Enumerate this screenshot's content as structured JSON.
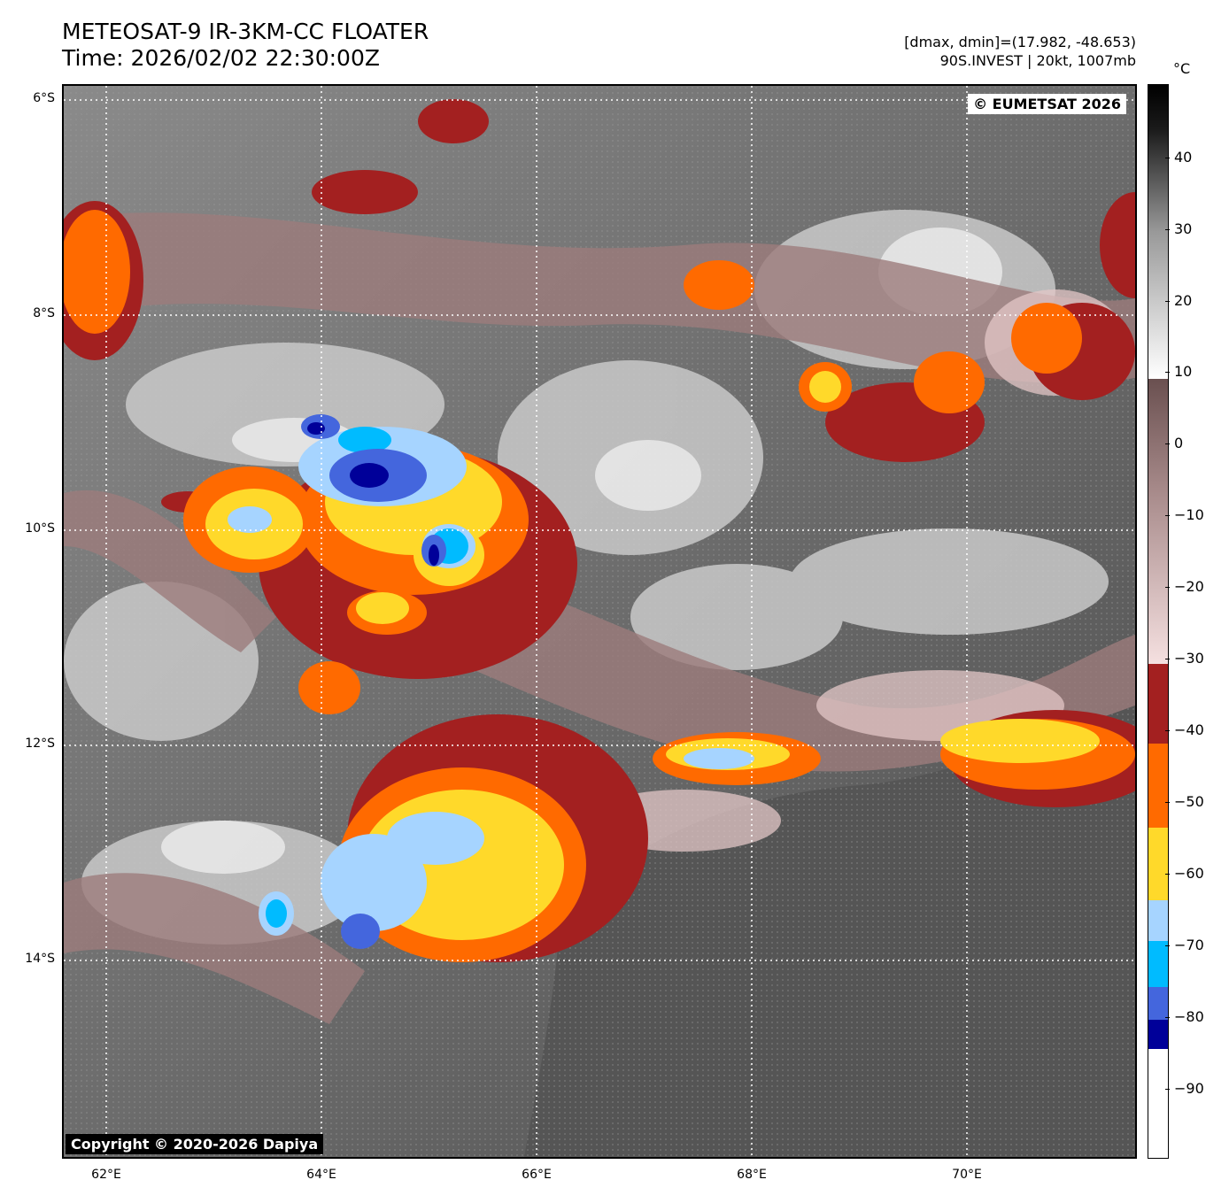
{
  "header": {
    "title_line1": "METEOSAT-9 IR-3KM-CC FLOATER",
    "title_line2": "Time: 2026/02/02 22:30:00Z",
    "info_line1": "[dmax, dmin]=(17.982, -48.653)",
    "info_line2": "90S.INVEST | 20kt, 1007mb"
  },
  "map": {
    "lat_labels": [
      "6°S",
      "8°S",
      "10°S",
      "12°S",
      "14°S"
    ],
    "lon_labels": [
      "62°E",
      "64°E",
      "66°E",
      "68°E",
      "70°E"
    ],
    "copyright_eumetsat": "© EUMETSAT 2026",
    "copyright_dapiya": "Copyright © 2020-2026 Dapiya"
  },
  "colorbar": {
    "unit": "°C",
    "labels": [
      "40",
      "30",
      "20",
      "10",
      "0",
      "−10",
      "−20",
      "−30",
      "−40",
      "−50",
      "−60",
      "−70",
      "−80",
      "−90"
    ],
    "range": [
      -100,
      50
    ],
    "colors": {
      "very_cold": "#ffffff",
      "dark_blue": "#000099",
      "blue": "#4466dd",
      "cyan": "#00bbff",
      "light_blue": "#a6d4ff",
      "yellow": "#ffd92a",
      "orange": "#ff6a00",
      "dark_red": "#a32020",
      "warm_top": "#ffffff",
      "warm_bottom": "#000000"
    }
  }
}
